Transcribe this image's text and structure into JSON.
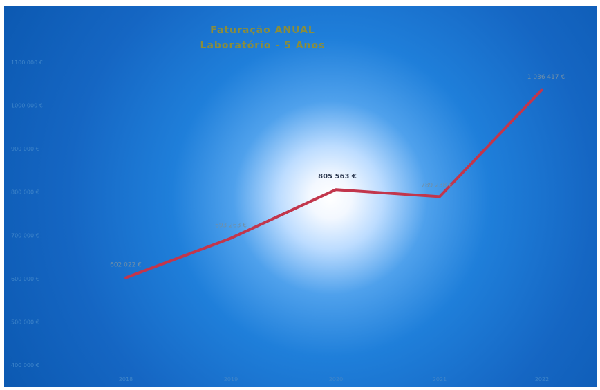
{
  "chart_data": {
    "type": "line",
    "title": [
      "Faturação ANUAL",
      "Laboratório - 5 Anos"
    ],
    "categories": [
      "2018",
      "2019",
      "2020",
      "2021",
      "2022"
    ],
    "series": [
      {
        "values": [
          602022,
          693263,
          805563,
          789238,
          1036417
        ],
        "data_labels": [
          "602 022 €",
          "693 263 €",
          "805 563 €",
          "789 238 €",
          "1 036 417 €"
        ],
        "color": "#c2364c"
      }
    ],
    "y_ticks": [
      400000,
      500000,
      600000,
      700000,
      800000,
      900000,
      1000000,
      1100000
    ],
    "y_tick_labels": [
      "400 000 €",
      "500 000 €",
      "600 000 €",
      "700 000 €",
      "800 000 €",
      "900 000 €",
      "1000 000 €",
      "1100 000 €"
    ],
    "ylim": [
      400000,
      1100000
    ],
    "xlabel": "",
    "ylabel": "",
    "grid": false,
    "legend": false,
    "colors": {
      "background_center": "#ffffff",
      "background_outer": "#0a52a6",
      "title": "#8a8d3c",
      "tick_text": "#3f85c9",
      "highlight_label": "#2b3850"
    }
  }
}
